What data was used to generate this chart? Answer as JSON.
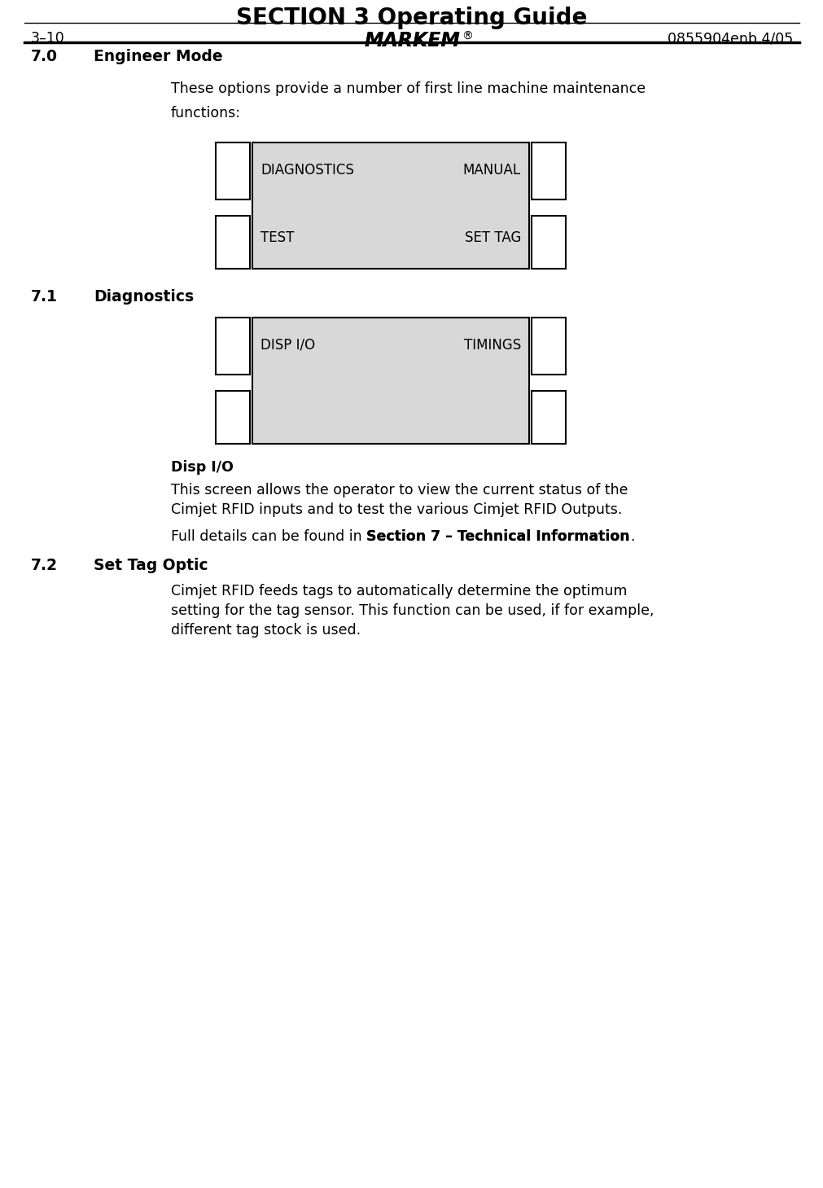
{
  "title": "SECTION 3 Operating Guide",
  "page_num": "3–10",
  "footer_brand": "MARKEM",
  "footer_reg": "®",
  "footer_right": "0855904enb 4/05",
  "section_heading": "7.0",
  "section_title": "Engineer Mode",
  "intro_line1": "These options provide a number of first line machine maintenance",
  "intro_line2": "functions:",
  "screen1_items_left": [
    "DIAGNOSTICS",
    "TEST"
  ],
  "screen1_items_right": [
    "MANUAL",
    "SET TAG"
  ],
  "sub71_num": "7.1",
  "sub71_title": "Diagnostics",
  "screen2_items_left": [
    "DISP I/O"
  ],
  "screen2_items_right": [
    "TIMINGS"
  ],
  "disp_title": "Disp I/O",
  "disp_line1": "This screen allows the operator to view the current status of the",
  "disp_line2": "Cimjet RFID inputs and to test the various Cimjet RFID Outputs.",
  "disp_prefix": "Full details can be found in ",
  "disp_bold": "Section 7 – Technical Information",
  "disp_suffix": ".",
  "sub72_num": "7.2",
  "sub72_title": "Set Tag Optic",
  "sub72_line1": "Cimjet RFID feeds tags to automatically determine the optimum",
  "sub72_line2": "setting for the tag sensor. This function can be used, if for example,",
  "sub72_line3": "different tag stock is used.",
  "bg_color": "#ffffff",
  "text_color": "#000000",
  "screen_bg": "#d8d8d8",
  "screen_border": "#000000"
}
